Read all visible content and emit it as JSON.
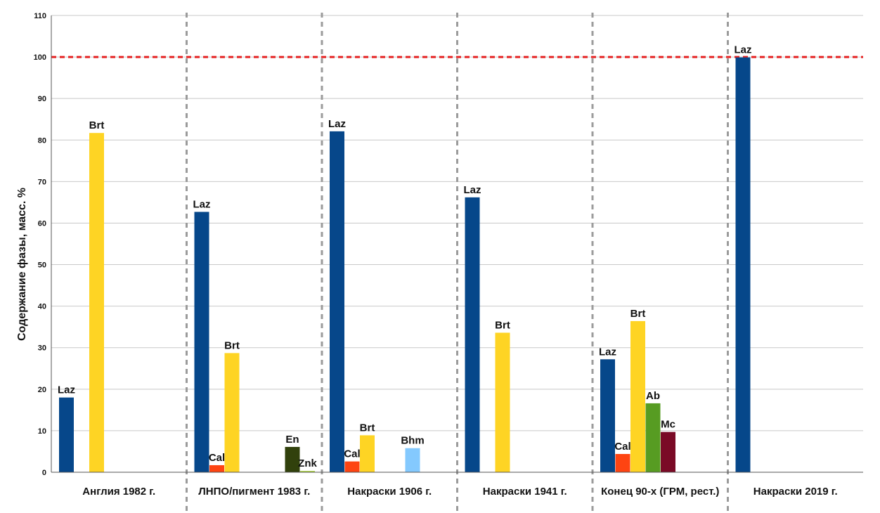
{
  "chart_data": {
    "type": "bar",
    "title": "",
    "xlabel": "",
    "ylabel": "Содержание фазы, масс. %",
    "ylim": [
      0,
      110
    ],
    "yticks": [
      0,
      10,
      20,
      30,
      40,
      50,
      60,
      70,
      80,
      90,
      100,
      110
    ],
    "grid": true,
    "reference_line": {
      "value": 100,
      "color": "#e52222",
      "style": "dotted"
    },
    "phase_colors": {
      "Laz": "#06478a",
      "Cal": "#fe4412",
      "Brt": "#fed424",
      "En": "#31410c",
      "Znk": "#a5cf31",
      "Bhm": "#84c9fe",
      "Ab": "#579c22",
      "Mc": "#7a0a26"
    },
    "groups": [
      {
        "label": "Англия 1982 г.",
        "bars": [
          {
            "phase": "Laz",
            "slot": 0,
            "value": 18
          },
          {
            "phase": "Brt",
            "slot": 2,
            "value": 81.7
          }
        ]
      },
      {
        "label": "ЛНПО/пигмент 1983 г.",
        "bars": [
          {
            "phase": "Laz",
            "slot": 0,
            "value": 62.7
          },
          {
            "phase": "Cal",
            "slot": 1,
            "value": 1.7
          },
          {
            "phase": "Brt",
            "slot": 2,
            "value": 28.7
          },
          {
            "phase": "En",
            "slot": 6,
            "value": 6.1
          },
          {
            "phase": "Znk",
            "slot": 7,
            "value": 0.3
          }
        ]
      },
      {
        "label": "Накраски 1906 г.",
        "bars": [
          {
            "phase": "Laz",
            "slot": 0,
            "value": 82.1
          },
          {
            "phase": "Cal",
            "slot": 1,
            "value": 2.6
          },
          {
            "phase": "Brt",
            "slot": 2,
            "value": 8.9
          },
          {
            "phase": "Bhm",
            "slot": 5,
            "value": 5.8
          }
        ]
      },
      {
        "label": "Накраски 1941 г.",
        "bars": [
          {
            "phase": "Laz",
            "slot": 0,
            "value": 66.2
          },
          {
            "phase": "Brt",
            "slot": 2,
            "value": 33.6
          }
        ]
      },
      {
        "label": "Конец 90-х (ГРМ, рест.)",
        "bars": [
          {
            "phase": "Laz",
            "slot": 0,
            "value": 27.2
          },
          {
            "phase": "Cal",
            "slot": 1,
            "value": 4.4
          },
          {
            "phase": "Brt",
            "slot": 2,
            "value": 36.4
          },
          {
            "phase": "Ab",
            "slot": 3,
            "value": 16.6
          },
          {
            "phase": "Mc",
            "slot": 4,
            "value": 9.7
          }
        ]
      },
      {
        "label": "Накраски 2019 г.",
        "bars": [
          {
            "phase": "Laz",
            "slot": 0,
            "value": 99.9
          }
        ]
      }
    ]
  }
}
